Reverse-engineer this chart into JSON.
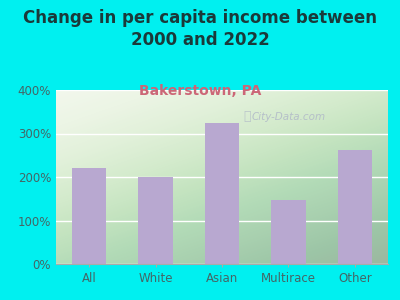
{
  "title": "Change in per capita income between\n2000 and 2022",
  "subtitle": "Bakerstown, PA",
  "categories": [
    "All",
    "White",
    "Asian",
    "Multirace",
    "Other"
  ],
  "values": [
    220,
    200,
    325,
    148,
    262
  ],
  "bar_color": "#b8a8d0",
  "title_fontsize": 12,
  "subtitle_fontsize": 10,
  "subtitle_color": "#cc6677",
  "title_color": "#1a3a3a",
  "bg_outer": "#00f0f0",
  "ylim": [
    0,
    400
  ],
  "yticks": [
    0,
    100,
    200,
    300,
    400
  ],
  "tick_color": "#446666",
  "watermark": "City-Data.com"
}
